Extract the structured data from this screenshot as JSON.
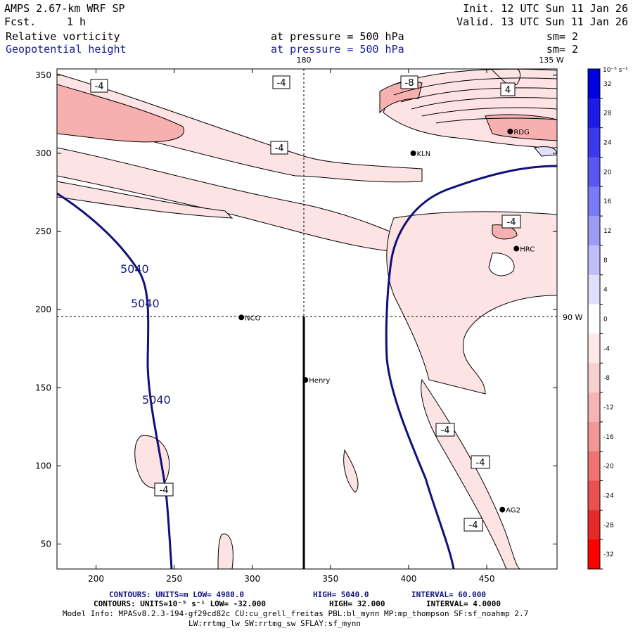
{
  "header": {
    "model": "AMPS 2.67-km WRF SP",
    "forecast_label": "Fcst.",
    "forecast_value": "1 h",
    "init": "Init. 12 UTC Sun 11 Jan 26",
    "valid": "Valid. 13 UTC Sun 11 Jan 26",
    "field1": "Relative vorticity",
    "field1_level": "at pressure =  500 hPa",
    "field1_sm": "sm= 2",
    "field2": "Geopotential height",
    "field2_level": "at pressure =  500 hPa",
    "field2_sm": "sm= 2"
  },
  "map": {
    "meridian_label": "180",
    "meridian_label_ne": "135 W",
    "parallel_label": "90 W",
    "x_ticks": [
      "200",
      "250",
      "300",
      "350",
      "400",
      "450"
    ],
    "y_ticks": [
      "350",
      "300",
      "250",
      "200",
      "150",
      "100",
      "50"
    ],
    "stations": [
      {
        "name": "NCO",
        "x": 293,
        "y": 195
      },
      {
        "name": "Henry",
        "x": 334,
        "y": 155
      },
      {
        "name": "KLN",
        "x": 403,
        "y": 300
      },
      {
        "name": "HRC",
        "x": 469,
        "y": 239
      },
      {
        "name": "RDG",
        "x": 465,
        "y": 314
      },
      {
        "name": "AG2",
        "x": 460,
        "y": 72
      }
    ],
    "vorticity_labels": [
      "-4",
      "-4",
      "-4",
      "-8",
      "4",
      "-4",
      "-4",
      "-4",
      "-4",
      "-4"
    ],
    "height_labels": [
      "5040",
      "5040",
      "5040"
    ]
  },
  "colorbar": {
    "units": "10⁻⁵ s⁻¹",
    "ticks": [
      "32",
      "28",
      "24",
      "20",
      "16",
      "12",
      "8",
      "4",
      "0",
      "-4",
      "-8",
      "-12",
      "-16",
      "-20",
      "-24",
      "-28",
      "-32"
    ],
    "colors": [
      "#0000e0",
      "#1c1ce6",
      "#3a3aec",
      "#5858f0",
      "#7a7af4",
      "#9c9cf6",
      "#bebef9",
      "#e0e0fc",
      "#ffffff",
      "#fde8e8",
      "#f9d0d0",
      "#f6b4b4",
      "#f29696",
      "#ee7474",
      "#ea5252",
      "#e62a2a",
      "#ff0000"
    ]
  },
  "footer": {
    "line1_label": "CONTOURS:  UNITS=m  LOW=  4980.0",
    "line1_high": "HIGH=  5040.0",
    "line1_interval": "INTERVAL=   60.000",
    "line2_label": "CONTOURS:  UNITS=10⁻⁵ s⁻¹  LOW= -32.000",
    "line2_high": "HIGH=  32.000",
    "line2_interval": "INTERVAL=   4.0000",
    "model_info": "Model Info: MPASv8.2.3-194-gf29cd82c CU:cu_grell_freitas PBL:bl_mynn MP:mp_thompson SF:sf_noahmp 2.7",
    "model_info2": "LW:rrtmg_lw SW:rrtmg_sw SFLAY:sf_mynn"
  }
}
